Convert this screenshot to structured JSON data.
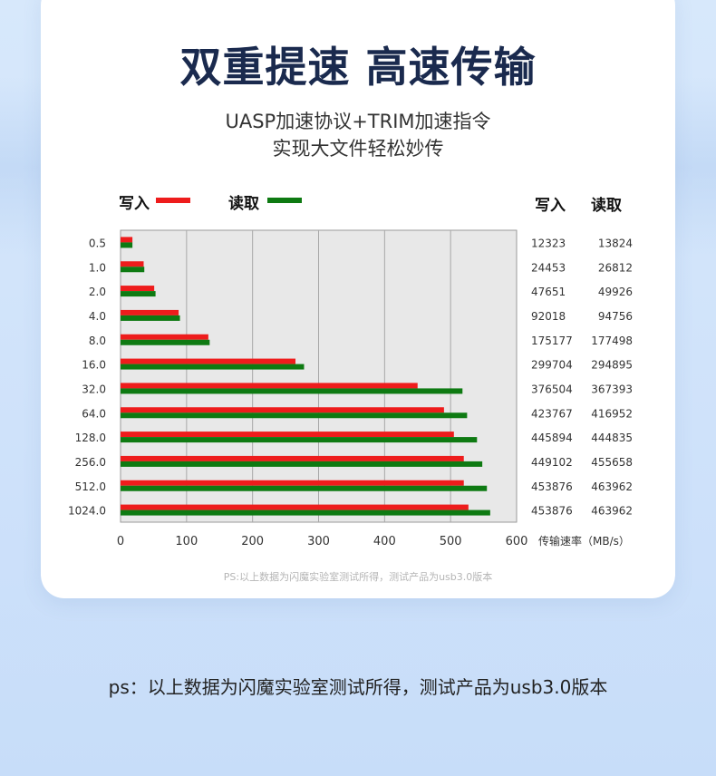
{
  "header": {
    "title": "双重提速 高速传输",
    "subtitle_line1": "UASP加速协议+TRIM加速指令",
    "subtitle_line2": "实现大文件轻松妙传"
  },
  "legend": {
    "write_label": "写入",
    "read_label": "读取",
    "table_write_header": "写入",
    "table_read_header": "读取"
  },
  "colors": {
    "write": "#ee1c1c",
    "read": "#0e7a12",
    "plot_bg": "#e8e8e8",
    "grid": "#a8a8a8"
  },
  "chart_data": {
    "type": "bar",
    "orientation": "horizontal",
    "title": "",
    "xlabel": "传输速率（MB/s）",
    "ylabel": "",
    "xlim": [
      0,
      600
    ],
    "xticks": [
      "0",
      "100",
      "200",
      "300",
      "400",
      "500",
      "600"
    ],
    "grid": true,
    "legend": "top-left",
    "categories": [
      "0.5",
      "1.0",
      "2.0",
      "4.0",
      "8.0",
      "16.0",
      "32.0",
      "64.0",
      "128.0",
      "256.0",
      "512.0",
      "1024.0"
    ],
    "series": [
      {
        "name": "写入",
        "color": "#ee1c1c",
        "values": [
          18,
          35,
          51,
          88,
          133,
          265,
          450,
          490,
          505,
          520,
          520,
          527
        ]
      },
      {
        "name": "读取",
        "color": "#0e7a12",
        "values": [
          18,
          36,
          53,
          90,
          135,
          278,
          518,
          525,
          540,
          548,
          555,
          560
        ]
      }
    ],
    "table": {
      "write": [
        "12323",
        "24453",
        "47651",
        "92018",
        "175177",
        "299704",
        "376504",
        "423767",
        "445894",
        "449102",
        "453876",
        "453876"
      ],
      "read": [
        "13824",
        "26812",
        "49926",
        "94756",
        "177498",
        "294895",
        "367393",
        "416952",
        "444835",
        "455658",
        "463962",
        "463962"
      ]
    }
  },
  "footnote_small": "PS:以上数据为闪魔实验室测试所得，测试产品为usb3.0版本",
  "footnote_large": "ps：以上数据为闪魔实验室测试所得，测试产品为usb3.0版本"
}
